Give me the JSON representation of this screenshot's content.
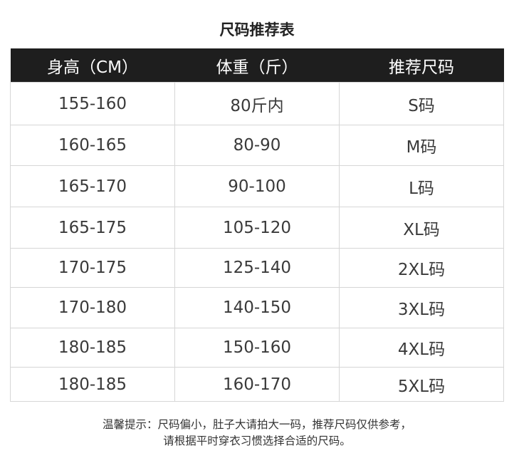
{
  "title": "尺码推荐表",
  "table": {
    "headers": [
      "身高（CM）",
      "体重（斤）",
      "推荐尺码"
    ],
    "rows": [
      [
        "155-160",
        "80斤内",
        "S码"
      ],
      [
        "160-165",
        "80-90",
        "M码"
      ],
      [
        "165-170",
        "90-100",
        "L码"
      ],
      [
        "165-175",
        "105-120",
        "XL码"
      ],
      [
        "170-175",
        "125-140",
        "2XL码"
      ],
      [
        "170-180",
        "140-150",
        "3XL码"
      ],
      [
        "180-185",
        "150-160",
        "4XL码"
      ],
      [
        "180-185",
        "160-170",
        "5XL码"
      ]
    ]
  },
  "note": {
    "line1": "温馨提示：尺码偏小，肚子大请拍大一码，推荐尺码仅供参考，",
    "line2": "请根据平时穿衣习惯选择合适的尺码。"
  }
}
